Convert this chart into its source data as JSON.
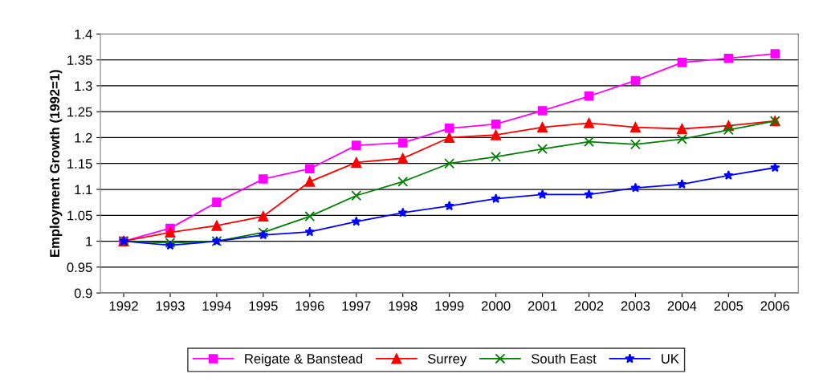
{
  "chart_data": {
    "type": "line",
    "ylabel": "Employment Growth (1992=1)",
    "categories": [
      "1992",
      "1993",
      "1994",
      "1995",
      "1996",
      "1997",
      "1998",
      "1999",
      "2000",
      "2001",
      "2002",
      "2003",
      "2004",
      "2005",
      "2006"
    ],
    "series": [
      {
        "name": "Reigate & Banstead",
        "color": "#ff00ff",
        "marker": "square",
        "values": [
          1,
          1.025,
          1.075,
          1.12,
          1.14,
          1.185,
          1.19,
          1.218,
          1.226,
          1.252,
          1.28,
          1.31,
          1.345,
          1.353,
          1.362
        ]
      },
      {
        "name": "Surrey",
        "color": "#ff0000",
        "marker": "triangle",
        "values": [
          1,
          1.017,
          1.03,
          1.048,
          1.115,
          1.152,
          1.16,
          1.2,
          1.205,
          1.22,
          1.228,
          1.22,
          1.217,
          1.223,
          1.232
        ]
      },
      {
        "name": "South East",
        "color": "#008000",
        "marker": "cross",
        "values": [
          1,
          0.997,
          1.0,
          1.017,
          1.048,
          1.088,
          1.115,
          1.15,
          1.163,
          1.178,
          1.192,
          1.187,
          1.197,
          1.215,
          1.232
        ]
      },
      {
        "name": "UK",
        "color": "#0000ff",
        "marker": "star",
        "values": [
          1,
          0.992,
          1.0,
          1.012,
          1.018,
          1.038,
          1.055,
          1.068,
          1.082,
          1.09,
          1.09,
          1.103,
          1.11,
          1.127,
          1.142
        ]
      }
    ],
    "ylim": [
      0.9,
      1.4
    ],
    "yticks": [
      0.9,
      0.95,
      1,
      1.05,
      1.1,
      1.15,
      1.2,
      1.25,
      1.3,
      1.35,
      1.4
    ],
    "grid": "y",
    "legend": "bottom",
    "line_style": "solid"
  }
}
